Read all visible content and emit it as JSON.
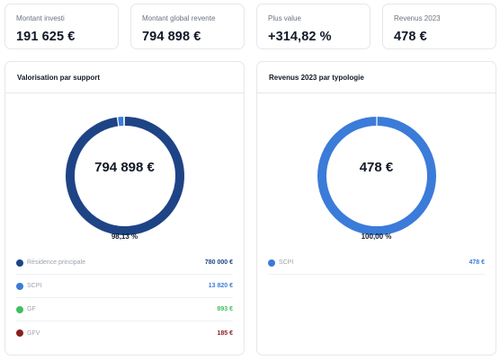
{
  "kpis": [
    {
      "label": "Montant investi",
      "value": "191 625 €"
    },
    {
      "label": "Montant global revente",
      "value": "794 898 €"
    },
    {
      "label": "Plus value",
      "value": "+314,82 %"
    },
    {
      "label": "Revenus 2023",
      "value": "478 €"
    }
  ],
  "left_panel": {
    "title": "Valorisation par support",
    "center_value": "794 898 €",
    "percent_label": "98,13 %",
    "legend": [
      {
        "name": "Résidence principale",
        "value": "780 000 €",
        "color": "#1e4486"
      },
      {
        "name": "SCPI",
        "value": "13 820 €",
        "color": "#3b7bd9"
      },
      {
        "name": "GF",
        "value": "893 €",
        "color": "#3fbf5e"
      },
      {
        "name": "GFV",
        "value": "185 €",
        "color": "#8b1e1e"
      }
    ]
  },
  "right_panel": {
    "title": "Revenus 2023 par typologie",
    "center_value": "478 €",
    "percent_label": "100,00 %",
    "legend": [
      {
        "name": "SCPI",
        "value": "478 €",
        "color": "#3b7bd9"
      }
    ]
  },
  "chart_data": [
    {
      "type": "pie",
      "categories": [
        "Résidence principale",
        "SCPI",
        "GF",
        "GFV"
      ],
      "values": [
        780000,
        13820,
        893,
        185
      ],
      "colors": [
        "#1e4486",
        "#3b7bd9",
        "#3fbf5e",
        "#8b1e1e"
      ]
    },
    {
      "type": "pie",
      "categories": [
        "SCPI"
      ],
      "values": [
        478
      ],
      "colors": [
        "#3b7bd9"
      ]
    }
  ]
}
